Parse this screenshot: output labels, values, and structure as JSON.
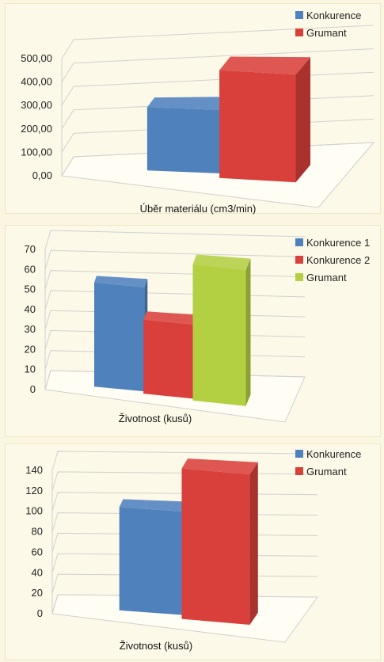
{
  "colors": {
    "blue": "#4f81bd",
    "red": "#d9403b",
    "green": "#b3cf42"
  },
  "chart_data": [
    {
      "type": "bar",
      "projection": "3d",
      "categories": [
        ""
      ],
      "series": [
        {
          "name": "Konkurence",
          "values": [
            270
          ],
          "color": "#4f81bd"
        },
        {
          "name": "Grumant",
          "values": [
            460
          ],
          "color": "#d9403b"
        }
      ],
      "xlabel": "Úběr materiálu (cm3/min)",
      "ylabel": "",
      "ylim": [
        0,
        500
      ],
      "yticks": [
        "0,00",
        "100,00",
        "200,00",
        "300,00",
        "400,00",
        "500,00"
      ],
      "grid": true,
      "legend": "top-right"
    },
    {
      "type": "bar",
      "projection": "3d",
      "categories": [
        ""
      ],
      "series": [
        {
          "name": "Konkurence 1",
          "values": [
            52
          ],
          "color": "#4f81bd"
        },
        {
          "name": "Konkurence 2",
          "values": [
            37
          ],
          "color": "#d9403b"
        },
        {
          "name": "Grumant",
          "values": [
            68
          ],
          "color": "#b3cf42"
        }
      ],
      "xlabel": "Životnost (kusů)",
      "ylabel": "",
      "ylim": [
        0,
        70
      ],
      "yticks": [
        "0",
        "10",
        "20",
        "30",
        "40",
        "50",
        "60",
        "70"
      ],
      "grid": true,
      "legend": "top-right"
    },
    {
      "type": "bar",
      "projection": "3d",
      "categories": [
        ""
      ],
      "series": [
        {
          "name": "Konkurence",
          "values": [
            101
          ],
          "color": "#4f81bd"
        },
        {
          "name": "Grumant",
          "values": [
            147
          ],
          "color": "#d9403b"
        }
      ],
      "xlabel": "Životnost (kusů)",
      "ylabel": "",
      "ylim": [
        0,
        140
      ],
      "yticks": [
        "0",
        "20",
        "40",
        "60",
        "80",
        "100",
        "120",
        "140"
      ],
      "grid": true,
      "legend": "top-right"
    }
  ]
}
